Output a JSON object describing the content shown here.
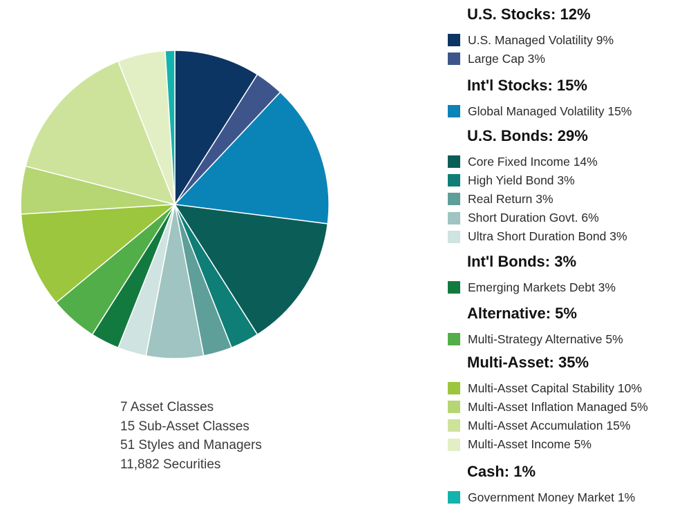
{
  "chart_data": {
    "type": "pie",
    "title": "",
    "groups": [
      {
        "name": "U.S. Stocks",
        "title": "U.S. Stocks: 12%",
        "items": [
          {
            "label": "U.S. Managed Volatility 9%",
            "value": 9,
            "color": "#0d3563"
          },
          {
            "label": "Large Cap 3%",
            "value": 3,
            "color": "#3e558c"
          }
        ]
      },
      {
        "name": "Int'l Stocks",
        "title": "Int'l Stocks: 15%",
        "items": [
          {
            "label": "Global Managed Volatility 15%",
            "value": 15,
            "color": "#0a84b7"
          }
        ]
      },
      {
        "name": "U.S. Bonds",
        "title": "U.S. Bonds: 29%",
        "items": [
          {
            "label": "Core Fixed Income 14%",
            "value": 14,
            "color": "#0b5e57"
          },
          {
            "label": "High Yield Bond 3%",
            "value": 3,
            "color": "#0f7e76"
          },
          {
            "label": "Real Return 3%",
            "value": 3,
            "color": "#5e9f9a"
          },
          {
            "label": "Short Duration Govt. 6%",
            "value": 6,
            "color": "#9fc4c1"
          },
          {
            "label": "Ultra Short Duration Bond 3%",
            "value": 3,
            "color": "#cfe3e0"
          }
        ]
      },
      {
        "name": "Int'l Bonds",
        "title": "Int'l Bonds: 3%",
        "items": [
          {
            "label": "Emerging Markets Debt 3%",
            "value": 3,
            "color": "#137a3f"
          }
        ]
      },
      {
        "name": "Alternative",
        "title": "Alternative: 5%",
        "items": [
          {
            "label": "Multi-Strategy Alternative 5%",
            "value": 5,
            "color": "#52ae48"
          }
        ]
      },
      {
        "name": "Multi-Asset",
        "title": "Multi-Asset: 35%",
        "items": [
          {
            "label": "Multi-Asset Capital Stability 10%",
            "value": 10,
            "color": "#9bc63d"
          },
          {
            "label": "Multi-Asset Inflation Managed 5%",
            "value": 5,
            "color": "#b6d573"
          },
          {
            "label": "Multi-Asset Accumulation 15%",
            "value": 15,
            "color": "#cde39b"
          },
          {
            "label": "Multi-Asset Income 5%",
            "value": 5,
            "color": "#e2efc4"
          }
        ]
      },
      {
        "name": "Cash",
        "title": "Cash: 1%",
        "items": [
          {
            "label": "Government Money Market 1%",
            "value": 1,
            "color": "#14b3ad"
          }
        ]
      }
    ]
  },
  "stats": [
    "7 Asset Classes",
    "15 Sub-Asset Classes",
    "51 Styles and Managers",
    "11,882 Securities"
  ]
}
